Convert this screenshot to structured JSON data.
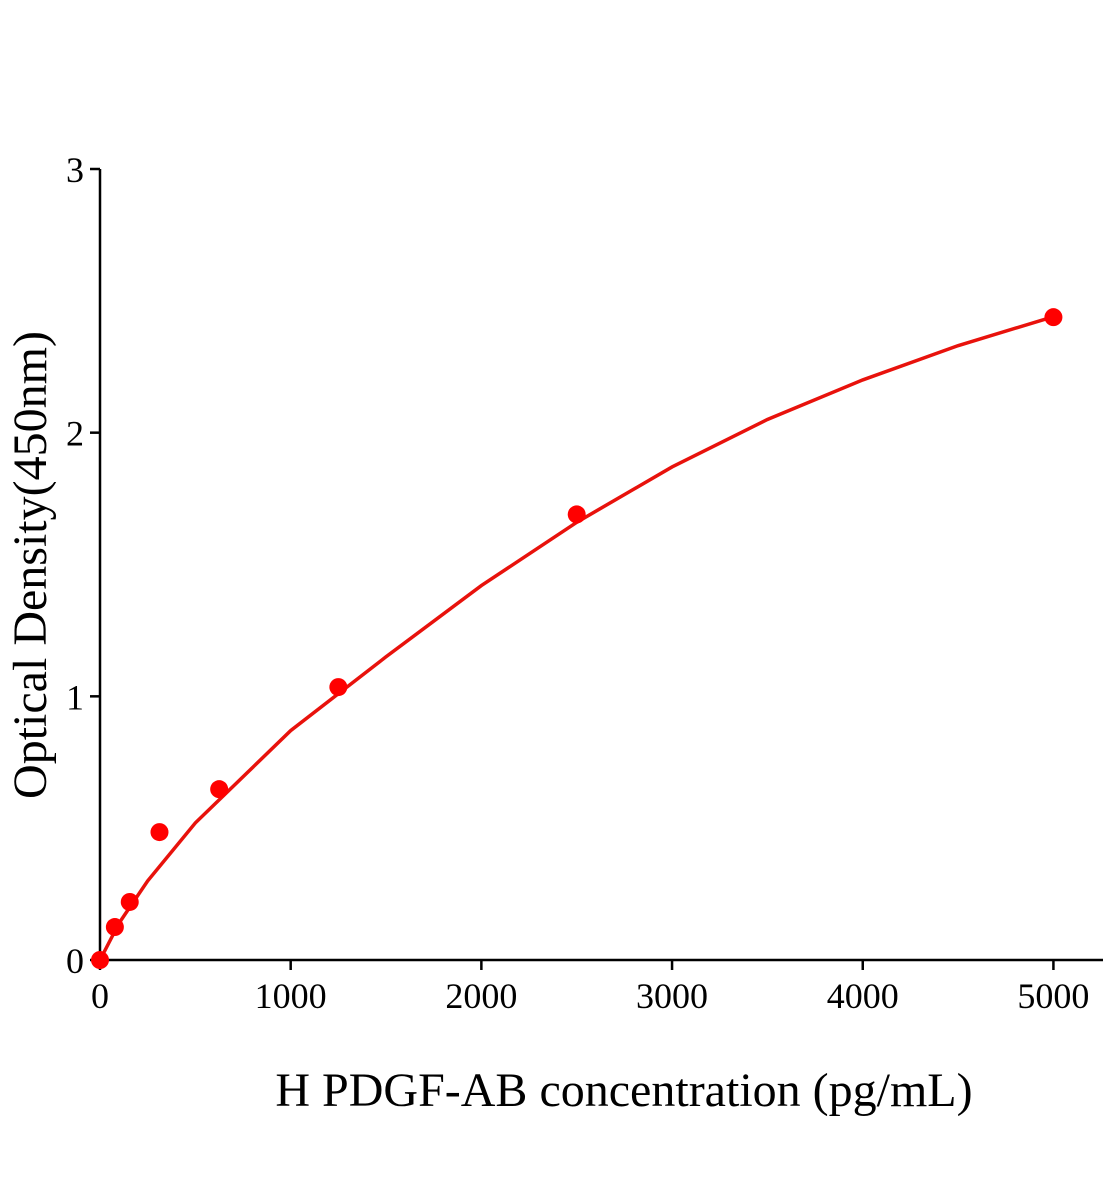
{
  "chart_data": {
    "type": "scatter",
    "xlabel": "H PDGF-AB concentration (pg/mL)",
    "ylabel": "Optical Density(450nm)",
    "xlim": [
      0,
      5260
    ],
    "xticks": [
      0,
      1000,
      2000,
      3000,
      4000,
      5000
    ],
    "ylim": [
      0,
      3
    ],
    "yticks": [
      0,
      1,
      2,
      3
    ],
    "grid": false,
    "series": [
      {
        "mode": "markers",
        "color": "#ff0000",
        "x": [
          0,
          78,
          156,
          312,
          625,
          1250,
          2500,
          5000
        ],
        "values": [
          0,
          0.125,
          0.22,
          0.485,
          0.648,
          1.035,
          1.69,
          2.438
        ]
      },
      {
        "mode": "line",
        "color": "#e8120c",
        "x": [
          0,
          100,
          250,
          500,
          1000,
          1500,
          2000,
          2500,
          3000,
          3500,
          4000,
          4500,
          5000
        ],
        "values": [
          0,
          0.14,
          0.3,
          0.52,
          0.87,
          1.15,
          1.42,
          1.66,
          1.87,
          2.05,
          2.2,
          2.33,
          2.44
        ]
      }
    ]
  }
}
